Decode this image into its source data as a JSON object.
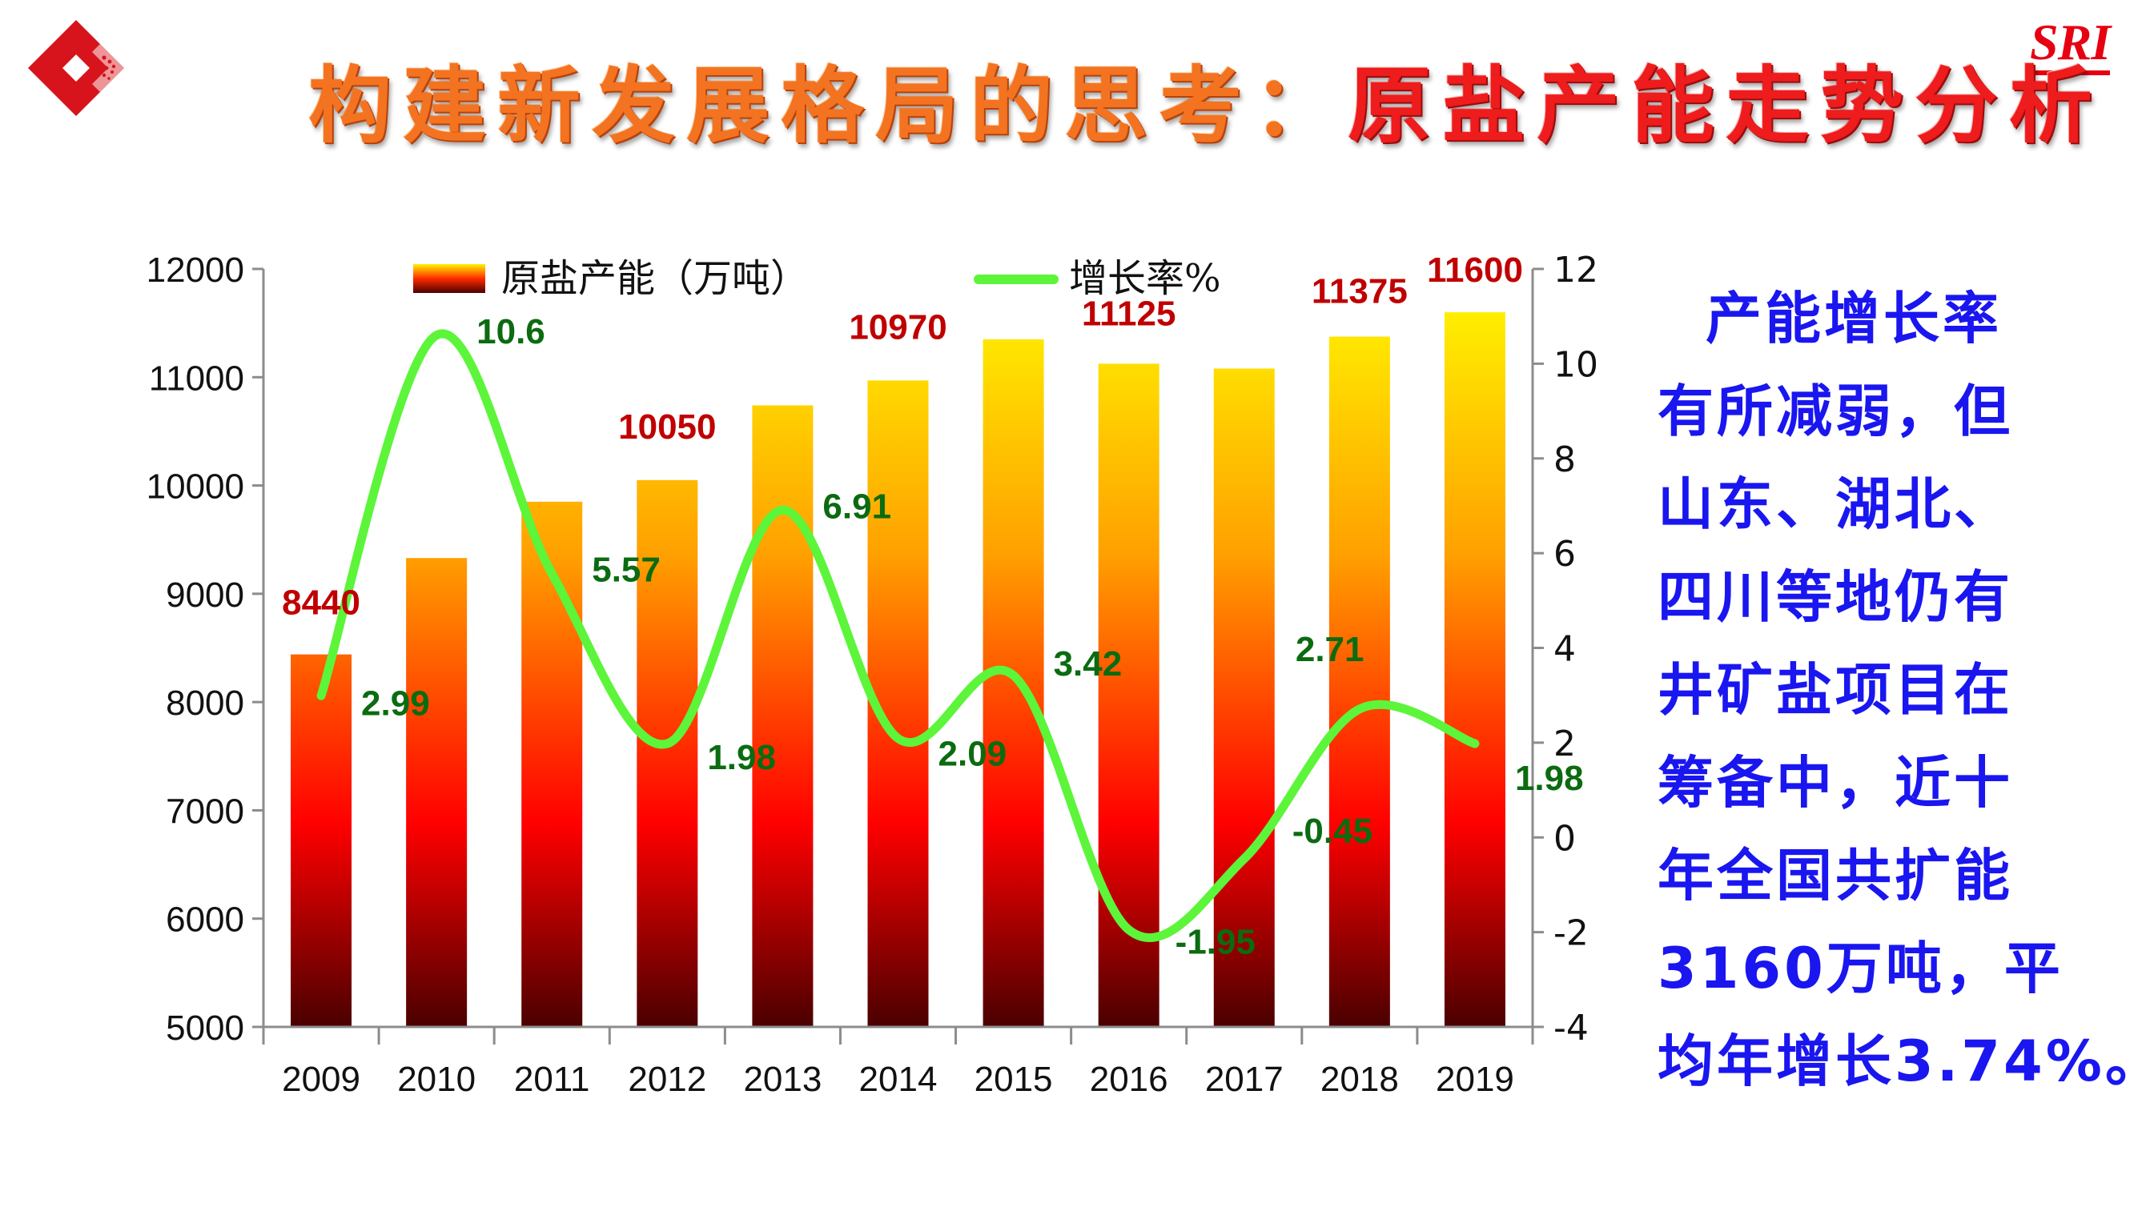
{
  "header": {
    "logo": "company-diamond-logo",
    "title_part1": "构建新发展格局的思考：",
    "title_part2": "原盐产能走势分析",
    "brand": "SRI"
  },
  "sidebar_text": {
    "lines": [
      "产能增长率",
      "有所减弱，但",
      "山东、湖北、",
      "四川等地仍有",
      "井矿盐项目在",
      "筹备中，近十",
      "年全国共扩能",
      "3160万吨，平",
      "均年增长3.74%。"
    ]
  },
  "chart_data": {
    "type": "bar",
    "title": "",
    "categories": [
      "2009",
      "2010",
      "2011",
      "2012",
      "2013",
      "2014",
      "2015",
      "2016",
      "2017",
      "2018",
      "2019"
    ],
    "series": [
      {
        "name": "原盐产能（万吨）",
        "type": "bar",
        "axis": "left",
        "values": [
          8440,
          9330,
          9850,
          10050,
          10740,
          10970,
          11350,
          11125,
          11080,
          11375,
          11600
        ],
        "labels": {
          "0": "8440",
          "3": "10050",
          "5": "10970",
          "7": "11125",
          "9": "11375",
          "10": "11600"
        },
        "color_top": "#ffee00",
        "color_mid": "#ff0000",
        "color_bottom": "#4a0000"
      },
      {
        "name": "增长率%",
        "type": "line",
        "axis": "right",
        "values": [
          2.99,
          10.6,
          5.57,
          1.98,
          6.91,
          2.09,
          3.42,
          -1.95,
          -0.45,
          2.71,
          1.98
        ],
        "labels": [
          "2.99",
          "10.6",
          "5.57",
          "1.98",
          "6.91",
          "2.09",
          "3.42",
          "-1.95",
          "-0.45",
          "2.71",
          "1.98"
        ],
        "color": "#5cf53a"
      }
    ],
    "left_axis": {
      "min": 5000,
      "max": 12000,
      "step": 1000,
      "ticks": [
        "5000",
        "6000",
        "7000",
        "8000",
        "9000",
        "10000",
        "11000",
        "12000"
      ]
    },
    "right_axis": {
      "min": -4,
      "max": 12,
      "step": 2,
      "ticks": [
        "-4",
        "-2",
        "0",
        "2",
        "4",
        "6",
        "8",
        "10",
        "12"
      ]
    },
    "xlabel": "",
    "ylabel": "",
    "grid": false,
    "legend": "top",
    "bar_label_color": "#c00000",
    "line_label_color": "#0b6b10"
  }
}
